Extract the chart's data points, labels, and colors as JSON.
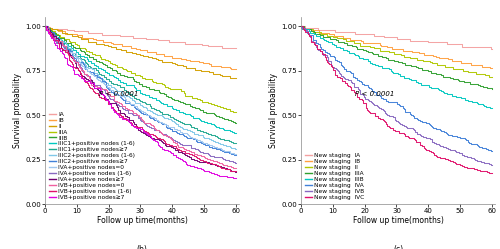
{
  "left_title": "(b)",
  "right_title": "(c)",
  "xlabel": "Follow up time(months)",
  "ylabel": "Survival probability",
  "p_value": "P < 0.0001",
  "xlim": [
    0,
    61
  ],
  "ylim": [
    0.0,
    1.05
  ],
  "xticks": [
    0,
    10,
    20,
    30,
    40,
    50,
    60
  ],
  "yticks": [
    0.0,
    0.25,
    0.5,
    0.75,
    1.0
  ],
  "left_curves": [
    {
      "label": "IA",
      "color": "#F4A0A0",
      "end_y": 0.88
    },
    {
      "label": "IB",
      "color": "#FFA040",
      "end_y": 0.76
    },
    {
      "label": "II",
      "color": "#D4A000",
      "end_y": 0.71
    },
    {
      "label": "IIIA",
      "color": "#B0C800",
      "end_y": 0.52
    },
    {
      "label": "IIIB",
      "color": "#30A030",
      "end_y": 0.46
    },
    {
      "label": "IIIC1+positive nodes (1-6)",
      "color": "#00C8C0",
      "end_y": 0.4
    },
    {
      "label": "IIIC1+positive nodes≥7",
      "color": "#20A890",
      "end_y": 0.34
    },
    {
      "label": "IIIC2+positive nodes (1-6)",
      "color": "#80C8E8",
      "end_y": 0.31
    },
    {
      "label": "IIIC2+positive nodes≥7",
      "color": "#4080D8",
      "end_y": 0.27
    },
    {
      "label": "IVA+positive nodes=0",
      "color": "#A0C8F0",
      "end_y": 0.28
    },
    {
      "label": "IVA+positive nodes (1-6)",
      "color": "#8868C0",
      "end_y": 0.22
    },
    {
      "label": "IVA+positive nodes≥7",
      "color": "#700070",
      "end_y": 0.17
    },
    {
      "label": "IVB+positive nodes=0",
      "color": "#F060A0",
      "end_y": 0.2
    },
    {
      "label": "IVB+positive nodes (1-6)",
      "color": "#E0106A",
      "end_y": 0.17
    },
    {
      "label": "IVB+positive nodes≥7",
      "color": "#E000E0",
      "end_y": 0.13
    }
  ],
  "right_curves": [
    {
      "label": "New staging  IA",
      "color": "#F4A0A0",
      "end_y": 0.88
    },
    {
      "label": "New staging  IB",
      "color": "#FFA040",
      "end_y": 0.77
    },
    {
      "label": "New staging  II",
      "color": "#B0C800",
      "end_y": 0.72
    },
    {
      "label": "New staging  IIIA",
      "color": "#30A030",
      "end_y": 0.65
    },
    {
      "label": "New staging  IIIB",
      "color": "#00C8C0",
      "end_y": 0.54
    },
    {
      "label": "New staging  IVA",
      "color": "#4080D8",
      "end_y": 0.3
    },
    {
      "label": "New staging  IVB",
      "color": "#8868C0",
      "end_y": 0.22
    },
    {
      "label": "New staging  IVC",
      "color": "#E0106A",
      "end_y": 0.13
    }
  ],
  "background_color": "#ffffff",
  "dpi": 100,
  "font_size": 5.5,
  "legend_font_size": 4.2,
  "tick_font_size": 5.0,
  "lw": 0.75
}
